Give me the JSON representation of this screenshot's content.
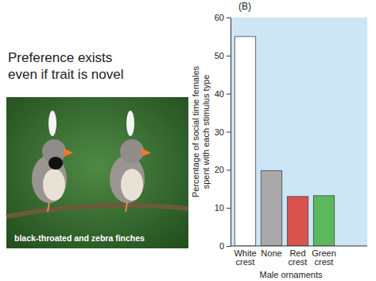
{
  "chart_data": {
    "type": "bar",
    "annotations": [
      "(B)",
      "Preference exists even if trait is novel",
      "black-throated and zebra finches"
    ],
    "y_label": "Percentage of social time females spent with each stimulus type",
    "x_label": "Male ornaments",
    "categories": [
      "White crest",
      "None",
      "Red crest",
      "Green crest"
    ],
    "values": [
      55,
      19.8,
      13,
      13.2
    ],
    "colors": [
      "#ffffff",
      "#a9a9a9",
      "#d9534f",
      "#5cb85c"
    ],
    "ylim": [
      0,
      60
    ],
    "yticks": [
      0,
      10,
      20,
      30,
      40,
      50,
      60
    ],
    "grid": false
  }
}
